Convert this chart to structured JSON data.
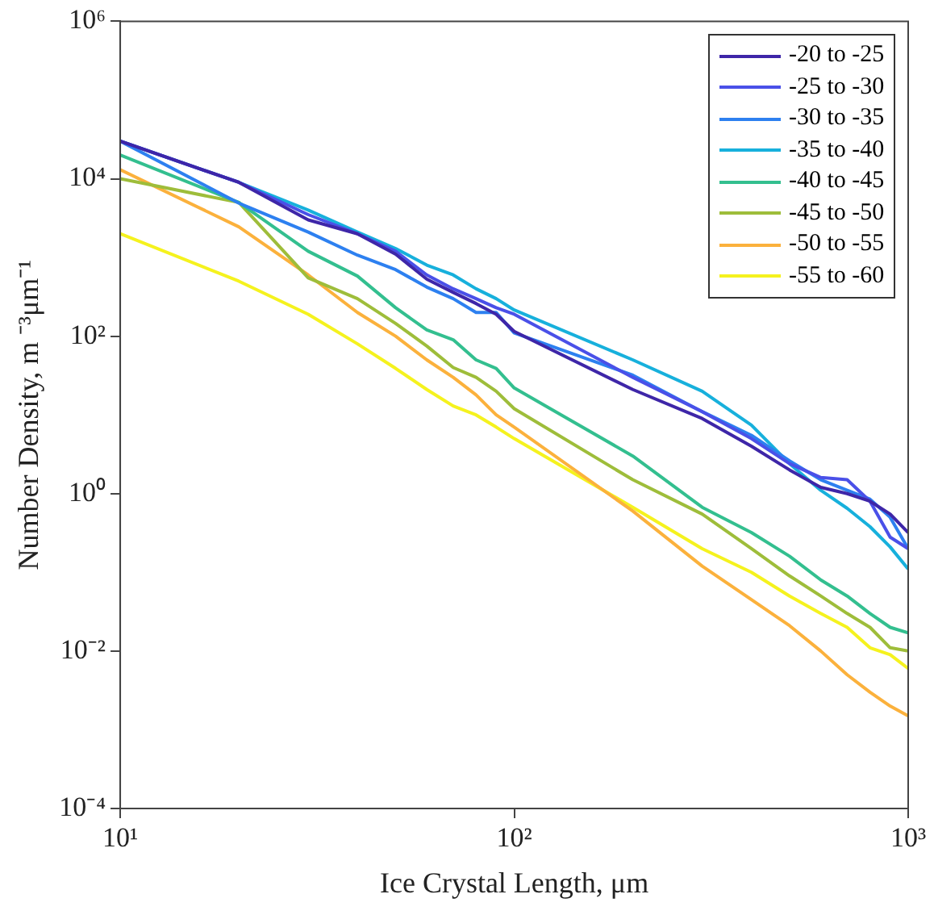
{
  "chart_data": {
    "type": "line",
    "xlabel": "Ice Crystal Length, μm",
    "ylabel": "Number Density, m ⁻³μm⁻¹",
    "x": [
      10,
      20,
      30,
      40,
      50,
      60,
      70,
      80,
      90,
      100,
      200,
      300,
      400,
      500,
      600,
      700,
      800,
      900,
      1000
    ],
    "series": [
      {
        "name": "-20 to -25",
        "color": "#3e26a8",
        "values": [
          30000,
          9000,
          3000,
          2000,
          1100,
          530,
          360,
          260,
          190,
          115,
          21,
          9,
          4,
          2,
          1.2,
          1,
          0.8,
          0.55,
          0.32
        ]
      },
      {
        "name": "-25 to -30",
        "color": "#4a50e8",
        "values": [
          30000,
          9000,
          3500,
          2000,
          1200,
          600,
          400,
          300,
          230,
          190,
          30,
          11,
          5,
          2.4,
          1.6,
          1.5,
          0.8,
          0.28,
          0.2
        ]
      },
      {
        "name": "-30 to -35",
        "color": "#2d80f0",
        "values": [
          30000,
          4900,
          2100,
          1070,
          700,
          420,
          300,
          200,
          200,
          110,
          32,
          11,
          5.5,
          2.6,
          1.5,
          1.1,
          0.85,
          0.5,
          0.2
        ]
      },
      {
        "name": "-35 to -40",
        "color": "#17b0dc",
        "values": [
          30000,
          9000,
          4000,
          2100,
          1300,
          800,
          600,
          400,
          300,
          215,
          50,
          20,
          7.4,
          2.4,
          1.1,
          0.65,
          0.38,
          0.21,
          0.11
        ]
      },
      {
        "name": "-40 to -45",
        "color": "#33bf8f",
        "values": [
          20000,
          5000,
          1200,
          580,
          230,
          120,
          90,
          50,
          39,
          22,
          3,
          0.67,
          0.32,
          0.16,
          0.08,
          0.05,
          0.03,
          0.02,
          0.017
        ]
      },
      {
        "name": "-45 to -50",
        "color": "#9ebd3a",
        "values": [
          10000,
          5000,
          550,
          300,
          145,
          75,
          40,
          30,
          20,
          12,
          1.5,
          0.55,
          0.2,
          0.09,
          0.05,
          0.03,
          0.02,
          0.011,
          0.01
        ]
      },
      {
        "name": "-50 to -55",
        "color": "#fbb13c",
        "values": [
          13000,
          2450,
          600,
          200,
          100,
          50,
          30,
          18,
          10,
          7,
          0.6,
          0.12,
          0.045,
          0.021,
          0.01,
          0.005,
          0.003,
          0.002,
          0.0015
        ]
      },
      {
        "name": "-55 to -60",
        "color": "#f5f21e",
        "values": [
          2000,
          500,
          190,
          80,
          39,
          21,
          13,
          10,
          7,
          5,
          0.67,
          0.2,
          0.1,
          0.05,
          0.03,
          0.02,
          0.011,
          0.009,
          0.006
        ]
      }
    ],
    "log": "xy",
    "xlim": [
      10,
      1000
    ],
    "ylim": [
      0.0001,
      1000000
    ],
    "xticks": [
      {
        "value": 10,
        "label": "10¹"
      },
      {
        "value": 100,
        "label": "10²"
      },
      {
        "value": 1000,
        "label": "10³"
      }
    ],
    "yticks": [
      {
        "value": 0.0001,
        "label": "10⁻⁴"
      },
      {
        "value": 0.01,
        "label": "10⁻²"
      },
      {
        "value": 1,
        "label": "10⁰"
      },
      {
        "value": 100,
        "label": "10²"
      },
      {
        "value": 10000,
        "label": "10⁴"
      },
      {
        "value": 1000000,
        "label": "10⁶"
      }
    ],
    "grid": false,
    "legend": "top right",
    "marker": "none",
    "line_style": "solid"
  }
}
